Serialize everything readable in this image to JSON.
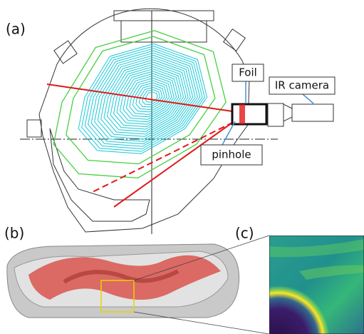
{
  "panels": {
    "a": "(a)",
    "b": "(b)",
    "c": "(c)"
  },
  "labels": {
    "foil": "Foil",
    "ir_camera": "IR camera",
    "pinhole": "pinhole"
  }
}
